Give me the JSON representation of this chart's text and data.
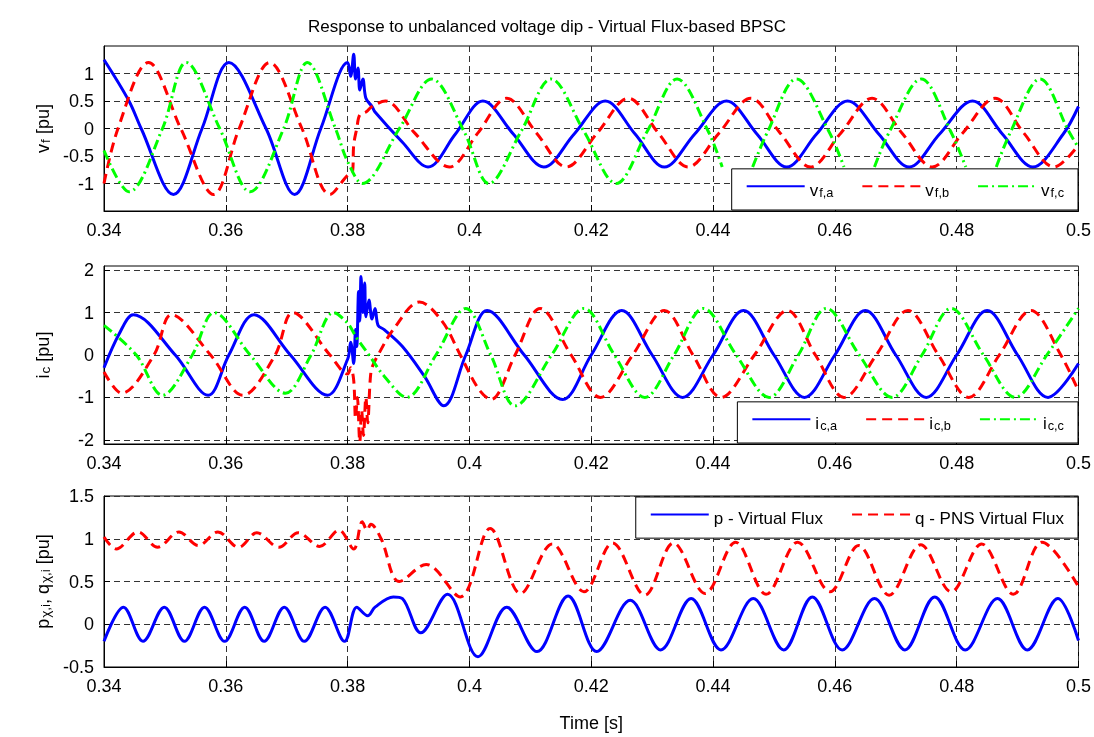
{
  "chart_data": [
    {
      "type": "line",
      "title": "Response to unbalanced voltage dip - Virtual Flux-based BPSC",
      "ylabel": "v$_{f}$ [pu]",
      "xlim": [
        0.34,
        0.5
      ],
      "xticks": [
        0.34,
        0.36,
        0.38,
        0.4,
        0.42,
        0.44,
        0.46,
        0.48,
        0.5
      ],
      "ylim": [
        -1.5,
        1.5
      ],
      "yticks": [
        -1,
        -0.5,
        0,
        0.5,
        1
      ],
      "grid": true,
      "legend": "bottom right",
      "marker": "none",
      "series": [
        {
          "name": "v$_{f,a}$",
          "color": "#0000ff",
          "line_style": "solid",
          "x": [
            0.34,
            0.3441,
            0.3461,
            0.3514,
            0.3561,
            0.3605,
            0.3666,
            0.3713,
            0.3756,
            0.38,
            0.3805,
            0.381,
            0.3813,
            0.3817,
            0.382,
            0.3825,
            0.383,
            0.384,
            0.3845,
            0.389,
            0.3932,
            0.3977,
            0.4022,
            0.4072,
            0.4122,
            0.4172,
            0.4223,
            0.4272,
            0.432,
            0.437,
            0.4422,
            0.4472,
            0.4521,
            0.457,
            0.4621,
            0.4672,
            0.4722,
            0.4772,
            0.4826,
            0.4875,
            0.4925,
            0.4975,
            0.5
          ],
          "values": [
            1.25,
            0.5,
            0,
            -1.2,
            0,
            1.2,
            0,
            -1.2,
            0,
            1.2,
            0.95,
            1.35,
            0.9,
            1.1,
            0.7,
            0.9,
            0.55,
            0.4,
            0.3,
            -0.25,
            -0.7,
            -0.1,
            0.5,
            -0.1,
            -0.7,
            -0.1,
            0.5,
            -0.1,
            -0.7,
            -0.1,
            0.5,
            -0.1,
            -0.7,
            -0.1,
            0.5,
            -0.1,
            -0.7,
            -0.1,
            0.5,
            -0.1,
            -0.7,
            -0.1,
            0.4
          ]
        },
        {
          "name": "v$_{f,b}$",
          "color": "#ff0000",
          "line_style": "dashed",
          "x": [
            0.34,
            0.3423,
            0.3473,
            0.3526,
            0.358,
            0.3622,
            0.3672,
            0.3725,
            0.3771,
            0.38,
            0.3808,
            0.381,
            0.3815,
            0.382,
            0.383,
            0.384,
            0.3862,
            0.391,
            0.3967,
            0.4014,
            0.4061,
            0.411,
            0.4159,
            0.421,
            0.4261,
            0.431,
            0.4359,
            0.441,
            0.4462,
            0.451,
            0.456,
            0.461,
            0.4661,
            0.471,
            0.476,
            0.481,
            0.4863,
            0.491,
            0.496,
            0.5
          ],
          "values": [
            -1.0,
            0,
            1.2,
            0,
            -1.2,
            0,
            1.2,
            0,
            -1.2,
            -0.85,
            -0.8,
            -0.3,
            0,
            0.25,
            0.3,
            0.4,
            0.5,
            -0.08,
            -0.7,
            -0.08,
            0.55,
            -0.08,
            -0.7,
            -0.08,
            0.55,
            -0.08,
            -0.7,
            -0.08,
            0.55,
            -0.08,
            -0.7,
            -0.08,
            0.55,
            -0.08,
            -0.7,
            -0.08,
            0.55,
            -0.08,
            -0.7,
            -0.3
          ]
        },
        {
          "name": "v$_{f,c}$",
          "color": "#00ff00",
          "line_style": "dashdot",
          "x": [
            0.34,
            0.3441,
            0.3496,
            0.3535,
            0.359,
            0.364,
            0.3695,
            0.3734,
            0.378,
            0.38,
            0.3824,
            0.3885,
            0.3938,
            0.3991,
            0.4032,
            0.4085,
            0.4134,
            0.4188,
            0.4241,
            0.4292,
            0.4341,
            0.4392,
            0.4415,
            0.444,
            0.4465,
            0.449,
            0.4537,
            0.459,
            0.4615,
            0.464,
            0.4665,
            0.469,
            0.4742,
            0.479,
            0.4815,
            0.484,
            0.4865,
            0.4889,
            0.4937,
            0.4984,
            0.5
          ],
          "values": [
            -0.4,
            -1.15,
            0,
            1.2,
            0,
            -1.15,
            0,
            1.2,
            0,
            -0.6,
            -1.0,
            0,
            0.9,
            -0.05,
            -1.0,
            -0.05,
            0.9,
            -0.05,
            -1.0,
            -0.05,
            0.9,
            -0.05,
            -0.7,
            null,
            -0.7,
            -0.05,
            0.9,
            -0.05,
            -0.7,
            null,
            -0.7,
            -0.05,
            0.9,
            -0.05,
            -0.7,
            null,
            -0.7,
            -0.05,
            0.9,
            -0.05,
            -0.35
          ]
        }
      ]
    },
    {
      "type": "line",
      "ylabel": "i$_{c}$ [pu]",
      "xlim": [
        0.34,
        0.5
      ],
      "xticks": [
        0.34,
        0.36,
        0.38,
        0.4,
        0.42,
        0.44,
        0.46,
        0.48,
        0.5
      ],
      "ylim": [
        -2.1,
        2.1
      ],
      "yticks": [
        -2,
        -1,
        0,
        1,
        2
      ],
      "grid": true,
      "legend": "bottom right",
      "marker": "none",
      "series": [
        {
          "name": "i$_{c,a}$",
          "color": "#0000ff",
          "line_style": "solid",
          "x": [
            0.34,
            0.3425,
            0.3448,
            0.3517,
            0.3571,
            0.3605,
            0.3646,
            0.3706,
            0.3767,
            0.38,
            0.3805,
            0.381,
            0.3813,
            0.3815,
            0.3818,
            0.382,
            0.3822,
            0.3825,
            0.3828,
            0.383,
            0.3835,
            0.384,
            0.3845,
            0.385,
            0.386,
            0.389,
            0.3926,
            0.3958,
            0.3994,
            0.4029,
            0.409,
            0.4153,
            0.42,
            0.425,
            0.43,
            0.435,
            0.44,
            0.445,
            0.45,
            0.455,
            0.46,
            0.465,
            0.47,
            0.475,
            0.48,
            0.485,
            0.49,
            0.495,
            0.5
          ],
          "values": [
            -0.3,
            0.5,
            0.95,
            0,
            -0.95,
            0,
            0.95,
            0,
            -0.95,
            -0.1,
            0.3,
            -0.2,
            0.6,
            0.2,
            1.5,
            0.8,
            1.85,
            1.0,
            1.7,
            0.9,
            1.3,
            0.85,
            1.1,
            0.7,
            0.6,
            0.2,
            -0.5,
            -1.2,
            0,
            1.05,
            0,
            -1.05,
            0,
            1.05,
            0,
            -1.0,
            0,
            1.05,
            0,
            -1.0,
            0,
            1.05,
            0,
            -1.0,
            0,
            1.05,
            0,
            -1.0,
            -0.2
          ]
        },
        {
          "name": "i$_{c,b}$",
          "color": "#ff0000",
          "line_style": "dashed",
          "x": [
            0.34,
            0.3429,
            0.3482,
            0.3511,
            0.3575,
            0.3628,
            0.3681,
            0.371,
            0.3771,
            0.38,
            0.3805,
            0.381,
            0.3813,
            0.3816,
            0.382,
            0.3823,
            0.3826,
            0.383,
            0.3833,
            0.3837,
            0.384,
            0.385,
            0.3875,
            0.3918,
            0.3955,
            0.3985,
            0.4015,
            0.4035,
            0.4075,
            0.4116,
            0.4167,
            0.4215,
            0.4268,
            0.432,
            0.4367,
            0.4413,
            0.4468,
            0.4522,
            0.4568,
            0.4615,
            0.4668,
            0.472,
            0.477,
            0.482,
            0.487,
            0.4922,
            0.4971,
            0.5
          ],
          "values": [
            -0.4,
            -0.9,
            0,
            0.95,
            0,
            -0.95,
            0,
            1.0,
            0,
            -0.45,
            -0.3,
            -0.6,
            -1.5,
            -1.0,
            -2.05,
            -1.3,
            -1.9,
            -1.0,
            -1.6,
            -0.6,
            -0.3,
            0,
            0.6,
            1.25,
            0.8,
            0,
            -0.8,
            -1.05,
            0,
            1.1,
            0,
            -1.0,
            0,
            1.05,
            0,
            -1.0,
            0,
            1.05,
            0,
            -1.0,
            0,
            1.05,
            0,
            -1.0,
            0,
            1.05,
            0,
            -0.85
          ]
        },
        {
          "name": "i$_{c,c}$",
          "color": "#00ff00",
          "line_style": "dashdot",
          "x": [
            0.34,
            0.3453,
            0.3496,
            0.3545,
            0.3581,
            0.364,
            0.3698,
            0.374,
            0.3777,
            0.38,
            0.3815,
            0.3835,
            0.386,
            0.3897,
            0.3945,
            0.3994,
            0.4035,
            0.4075,
            0.4135,
            0.4188,
            0.4238,
            0.4288,
            0.4336,
            0.4384,
            0.4438,
            0.4492,
            0.454,
            0.4586,
            0.464,
            0.4694,
            0.4743,
            0.4791,
            0.4844,
            0.4896,
            0.4948,
            0.5
          ],
          "values": [
            0.7,
            0,
            -0.95,
            0,
            1.0,
            0,
            -0.9,
            0,
            1.0,
            0.75,
            0.4,
            0,
            -0.5,
            -1.0,
            0,
            1.1,
            0,
            -1.2,
            0,
            1.1,
            0,
            -1.0,
            0,
            1.1,
            0,
            -1.0,
            0,
            1.1,
            0,
            -1.0,
            0,
            1.1,
            0,
            -1.0,
            0,
            1.1
          ]
        }
      ]
    },
    {
      "type": "line",
      "xlabel": "Time [s]",
      "ylabel": "p$_{χ,i}$, q$_{χ,i}$ [pu]",
      "xlim": [
        0.34,
        0.5
      ],
      "xticks": [
        0.34,
        0.36,
        0.38,
        0.4,
        0.42,
        0.44,
        0.46,
        0.48,
        0.5
      ],
      "ylim": [
        -0.5,
        1.5
      ],
      "yticks": [
        -0.5,
        0,
        0.5,
        1,
        1.5
      ],
      "grid": true,
      "legend": "top right",
      "marker": "none",
      "series": [
        {
          "name": "p - Virtual Flux",
          "color": "#0000ff",
          "line_style": "solid",
          "x": [
            0.34,
            0.3432,
            0.3464,
            0.3499,
            0.3532,
            0.3565,
            0.3598,
            0.3631,
            0.3663,
            0.3696,
            0.3729,
            0.3763,
            0.3795,
            0.3815,
            0.3833,
            0.3845,
            0.3875,
            0.389,
            0.392,
            0.3964,
            0.4014,
            0.4061,
            0.4111,
            0.4162,
            0.4209,
            0.4264,
            0.4314,
            0.4364,
            0.4413,
            0.4466,
            0.4516,
            0.4563,
            0.4612,
            0.4665,
            0.4715,
            0.4764,
            0.4814,
            0.4867,
            0.4916,
            0.4966,
            0.5
          ],
          "values": [
            -0.2,
            0.2,
            -0.2,
            0.2,
            -0.2,
            0.2,
            -0.2,
            0.2,
            -0.2,
            0.2,
            -0.2,
            0.2,
            -0.2,
            0.2,
            0.1,
            0.2,
            0.32,
            0.3,
            -0.1,
            0.35,
            -0.38,
            0.2,
            -0.32,
            0.33,
            -0.32,
            0.28,
            -0.3,
            0.3,
            -0.3,
            0.3,
            -0.3,
            0.32,
            -0.3,
            0.3,
            -0.3,
            0.32,
            -0.3,
            0.3,
            -0.3,
            0.3,
            -0.19
          ]
        },
        {
          "name": "q - PNS Virtual Flux",
          "color": "#ff0000",
          "line_style": "dashed",
          "x": [
            0.34,
            0.342,
            0.3456,
            0.3488,
            0.3523,
            0.3555,
            0.3587,
            0.3621,
            0.3651,
            0.3687,
            0.3719,
            0.3754,
            0.3786,
            0.381,
            0.3824,
            0.3832,
            0.3838,
            0.3855,
            0.3885,
            0.3929,
            0.3985,
            0.4034,
            0.4084,
            0.4136,
            0.4188,
            0.4235,
            0.4288,
            0.4335,
            0.4387,
            0.4437,
            0.4487,
            0.4539,
            0.4592,
            0.4639,
            0.4689,
            0.4741,
            0.4791,
            0.4841,
            0.4893,
            0.494,
            0.5
          ],
          "values": [
            1.02,
            0.88,
            1.08,
            0.9,
            1.08,
            0.92,
            1.08,
            0.9,
            1.07,
            0.9,
            1.07,
            0.91,
            1.1,
            0.88,
            1.2,
            1.1,
            1.17,
            1.0,
            0.5,
            0.7,
            0.32,
            1.12,
            0.36,
            0.94,
            0.38,
            0.95,
            0.34,
            0.95,
            0.36,
            0.96,
            0.35,
            0.96,
            0.38,
            0.92,
            0.34,
            0.93,
            0.38,
            0.94,
            0.35,
            0.96,
            0.44
          ]
        }
      ]
    }
  ]
}
